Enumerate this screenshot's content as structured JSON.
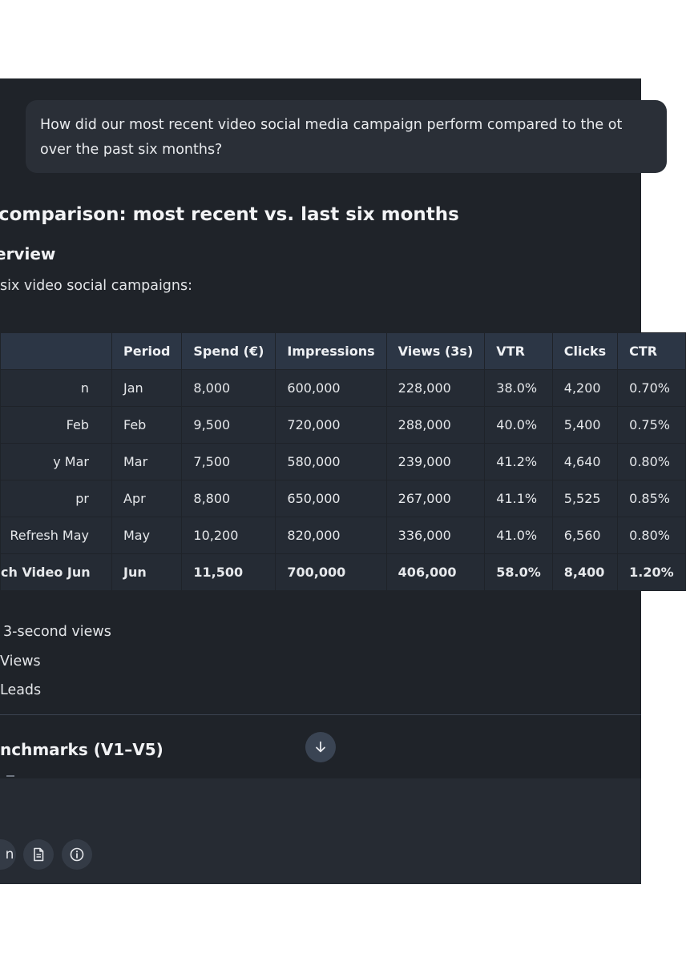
{
  "chat": {
    "user_message_line1": "How did our most recent video social media campaign perform compared to the ot",
    "user_message_line2": "over the past six months?"
  },
  "response": {
    "heading": "comparison: most recent vs. last six months",
    "subheading": "erview",
    "intro": "six video social campaigns:",
    "table": {
      "headers": [
        "",
        "Period",
        "Spend (€)",
        "Impressions",
        "Views (3s)",
        "VTR",
        "Clicks",
        "CTR"
      ],
      "rows": [
        {
          "campaign": "n",
          "period": "Jan",
          "spend": "8,000",
          "impressions": "600,000",
          "views": "228,000",
          "vtr": "38.0%",
          "clicks": "4,200",
          "ctr": "0.70%"
        },
        {
          "campaign": "Feb",
          "period": "Feb",
          "spend": "9,500",
          "impressions": "720,000",
          "views": "288,000",
          "vtr": "40.0%",
          "clicks": "5,400",
          "ctr": "0.75%"
        },
        {
          "campaign": "y Mar",
          "period": "Mar",
          "spend": "7,500",
          "impressions": "580,000",
          "views": "239,000",
          "vtr": "41.2%",
          "clicks": "4,640",
          "ctr": "0.80%"
        },
        {
          "campaign": "pr",
          "period": "Apr",
          "spend": "8,800",
          "impressions": "650,000",
          "views": "267,000",
          "vtr": "41.1%",
          "clicks": "5,525",
          "ctr": "0.85%"
        },
        {
          "campaign": "Refresh May",
          "period": "May",
          "spend": "10,200",
          "impressions": "820,000",
          "views": "336,000",
          "vtr": "41.0%",
          "clicks": "6,560",
          "ctr": "0.80%"
        },
        {
          "campaign": "ch Video Jun",
          "period": "Jun",
          "spend": "11,500",
          "impressions": "700,000",
          "views": "406,000",
          "vtr": "58.0%",
          "clicks": "8,400",
          "ctr": "1.20%"
        }
      ]
    },
    "list_items": [
      "3-second views",
      "Views",
      "Leads"
    ],
    "benchmarks_heading": "nchmarks (V1–V5)"
  },
  "controls": {
    "scroll_icon": "arrow-down-icon",
    "tool_icons": [
      "partial-icon",
      "document-icon",
      "info-icon"
    ],
    "partial_glyph": "n"
  }
}
